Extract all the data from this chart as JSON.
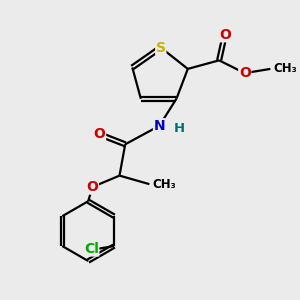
{
  "bg_color": "#ebebeb",
  "bond_color": "#000000",
  "atom_colors": {
    "S": "#c8b400",
    "O": "#cc0000",
    "N": "#0000cc",
    "H": "#007070",
    "Cl": "#00aa00",
    "C": "#000000"
  },
  "lw": 1.6,
  "fs": 9.5,
  "title": ""
}
